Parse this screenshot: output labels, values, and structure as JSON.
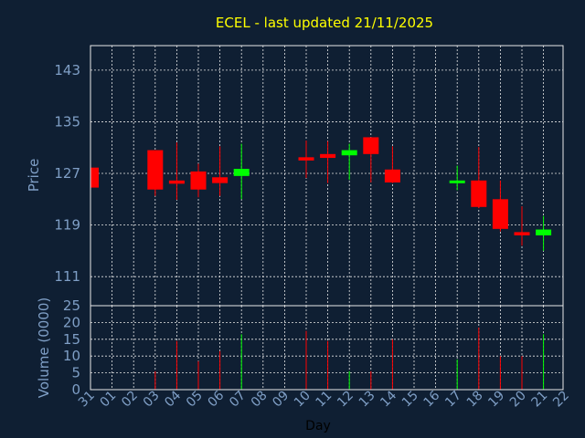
{
  "chart_data": {
    "type": "candlestick",
    "title": "ECEL - last updated 21/11/2025",
    "price_panel": {
      "ylabel": "Price",
      "yticks": [
        111,
        119,
        127,
        135,
        143
      ],
      "ylim": [
        106.5,
        146.8
      ]
    },
    "volume_panel": {
      "ylabel": "Volume (0000)",
      "yticks": [
        0,
        5,
        10,
        15,
        20,
        25
      ],
      "ylim": [
        0,
        25
      ]
    },
    "xlabel": "Day",
    "x_tick_labels": [
      "31",
      "01",
      "02",
      "03",
      "04",
      "05",
      "06",
      "07",
      "08",
      "09",
      "10",
      "11",
      "12",
      "13",
      "14",
      "15",
      "16",
      "17",
      "18",
      "19",
      "20",
      "21",
      "22"
    ],
    "grid": true,
    "colors": {
      "up": "#00ff00",
      "down": "#ff0000"
    },
    "candles": [
      {
        "day": "31",
        "open": 127.9,
        "high": 128.1,
        "low": 124.8,
        "close": 124.8,
        "volume": 0
      },
      {
        "day": "03",
        "open": 130.6,
        "high": 130.6,
        "low": 123.5,
        "close": 124.5,
        "volume": 5.5
      },
      {
        "day": "04",
        "open": 125.9,
        "high": 131.8,
        "low": 122.9,
        "close": 125.4,
        "volume": 14.5
      },
      {
        "day": "05",
        "open": 127.3,
        "high": 128.5,
        "low": 123.3,
        "close": 124.5,
        "volume": 8.5
      },
      {
        "day": "06",
        "open": 126.4,
        "high": 131.2,
        "low": 123.5,
        "close": 125.5,
        "volume": 11.5
      },
      {
        "day": "07",
        "open": 126.6,
        "high": 131.6,
        "low": 123.0,
        "close": 127.7,
        "volume": 16.5
      },
      {
        "day": "10",
        "open": 129.5,
        "high": 132.1,
        "low": 126.3,
        "close": 129.0,
        "volume": 17.5
      },
      {
        "day": "11",
        "open": 130.0,
        "high": 132.0,
        "low": 125.5,
        "close": 129.4,
        "volume": 14.5
      },
      {
        "day": "12",
        "open": 129.8,
        "high": 131.6,
        "low": 126.0,
        "close": 130.6,
        "volume": 5.5
      },
      {
        "day": "13",
        "open": 132.6,
        "high": 132.6,
        "low": 125.6,
        "close": 130.0,
        "volume": 5.5
      },
      {
        "day": "14",
        "open": 127.6,
        "high": 131.2,
        "low": 125.5,
        "close": 125.6,
        "volume": 15.0
      },
      {
        "day": "17",
        "open": 125.6,
        "high": 128.2,
        "low": 124.4,
        "close": 125.9,
        "volume": 9.0
      },
      {
        "day": "18",
        "open": 125.9,
        "high": 131.1,
        "low": 121.6,
        "close": 121.8,
        "volume": 18.5
      },
      {
        "day": "19",
        "open": 123.0,
        "high": 125.9,
        "low": 118.0,
        "close": 118.4,
        "volume": 10.0
      },
      {
        "day": "20",
        "open": 117.9,
        "high": 121.9,
        "low": 115.8,
        "close": 117.4,
        "volume": 10.0
      },
      {
        "day": "21",
        "open": 117.4,
        "high": 120.4,
        "low": 115.0,
        "close": 118.3,
        "volume": 16.5
      }
    ]
  }
}
